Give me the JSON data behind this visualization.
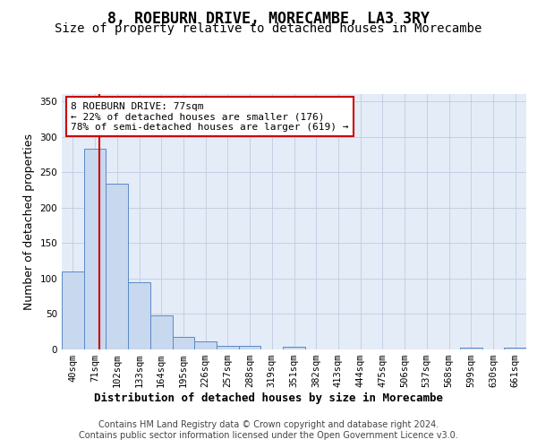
{
  "title": "8, ROEBURN DRIVE, MORECAMBE, LA3 3RY",
  "subtitle": "Size of property relative to detached houses in Morecambe",
  "xlabel": "Distribution of detached houses by size in Morecambe",
  "ylabel": "Number of detached properties",
  "footer_line1": "Contains HM Land Registry data © Crown copyright and database right 2024.",
  "footer_line2": "Contains public sector information licensed under the Open Government Licence v3.0.",
  "categories": [
    "40sqm",
    "71sqm",
    "102sqm",
    "133sqm",
    "164sqm",
    "195sqm",
    "226sqm",
    "257sqm",
    "288sqm",
    "319sqm",
    "351sqm",
    "382sqm",
    "413sqm",
    "444sqm",
    "475sqm",
    "506sqm",
    "537sqm",
    "568sqm",
    "599sqm",
    "630sqm",
    "661sqm"
  ],
  "values": [
    110,
    283,
    234,
    95,
    48,
    18,
    12,
    5,
    5,
    0,
    4,
    0,
    0,
    0,
    0,
    0,
    0,
    0,
    3,
    0,
    3
  ],
  "bar_color": "#c8d8ee",
  "bar_edge_color": "#5a8ac6",
  "bar_width": 1.0,
  "property_line_x": 1.19,
  "property_line_color": "#cc0000",
  "annotation_text": "8 ROEBURN DRIVE: 77sqm\n← 22% of detached houses are smaller (176)\n78% of semi-detached houses are larger (619) →",
  "annotation_box_color": "white",
  "annotation_edge_color": "#cc0000",
  "ylim": [
    0,
    360
  ],
  "yticks": [
    0,
    50,
    100,
    150,
    200,
    250,
    300,
    350
  ],
  "grid_color": "#c0cce0",
  "bg_color": "#e4ecf7",
  "fig_bg_color": "white",
  "title_fontsize": 12,
  "subtitle_fontsize": 10,
  "xlabel_fontsize": 9,
  "ylabel_fontsize": 9,
  "annotation_fontsize": 8,
  "tick_fontsize": 7.5,
  "footer_fontsize": 7
}
